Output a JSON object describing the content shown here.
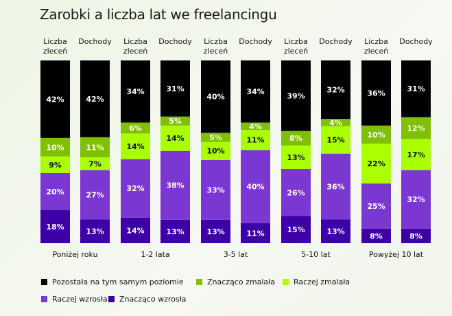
{
  "chart_data": {
    "type": "bar",
    "stacked": true,
    "title": "Zarobki a liczba lat we freelancingu",
    "groups": [
      "Poniżej roku",
      "1-2 lata",
      "3-5 lat",
      "5-10 lat",
      "Powyżej 10 lat"
    ],
    "bar_labels": [
      "Liczba zleceń",
      "Dochody"
    ],
    "categories": [
      "Poniżej roku – Liczba zleceń",
      "Poniżej roku – Dochody",
      "1-2 lata – Liczba zleceń",
      "1-2 lata – Dochody",
      "3-5 lat – Liczba zleceń",
      "3-5 lat – Dochody",
      "5-10 lat – Liczba zleceń",
      "5-10 lat – Dochody",
      "Powyżej 10 lat – Liczba zleceń",
      "Powyżej 10 lat – Dochody"
    ],
    "series": [
      {
        "name": "Znacząco wzrosła",
        "color": "#3c00a6",
        "text_color": "#ffffff",
        "values": [
          18,
          13,
          14,
          13,
          13,
          11,
          15,
          13,
          8,
          8
        ]
      },
      {
        "name": "Raczej wzrosła",
        "color": "#7b37d1",
        "text_color": "#ffffff",
        "values": [
          20,
          27,
          32,
          38,
          33,
          40,
          26,
          36,
          25,
          32
        ]
      },
      {
        "name": "Raczej zmalała",
        "color": "#aaff00",
        "text_color": "#111111",
        "values": [
          9,
          7,
          14,
          14,
          10,
          11,
          13,
          15,
          22,
          17
        ]
      },
      {
        "name": "Znacząco zmalała",
        "color": "#80c000",
        "text_color": "#ffffff",
        "values": [
          10,
          11,
          6,
          5,
          5,
          4,
          8,
          4,
          10,
          12
        ]
      },
      {
        "name": "Pozostała na tym samym poziomie",
        "color": "#000000",
        "text_color": "#ffffff",
        "values": [
          42,
          42,
          34,
          31,
          40,
          34,
          39,
          32,
          36,
          31
        ]
      }
    ],
    "legend_order": [
      "Pozostała na tym samym poziomie",
      "Znacząco zmalała",
      "Raczej zmalała",
      "Raczej wzrosła",
      "Znacząco wzrosła"
    ],
    "unit": "%",
    "legend_position": "bottom",
    "grid": false
  }
}
